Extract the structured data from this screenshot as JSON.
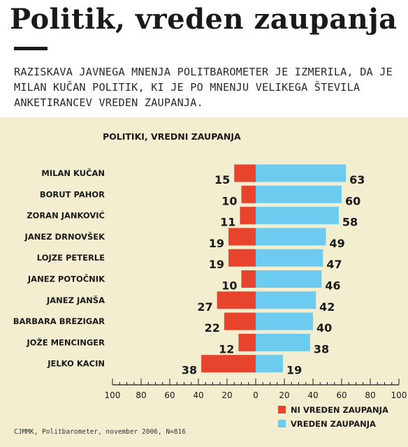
{
  "title": "Politik, vreden zaupanja",
  "intro": "RAZISKAVA JAVNEGA MNENJA POLITBAROMETER JE IZMERILA, DA JE MILAN KUČAN POLITIK, KI JE PO MNENJU VELIKEGA ŠTEVILA ANKETIRANCEV VREDEN ZAUPANJA.",
  "source": "CJMMK, Politbarometer, november 2006, N=816",
  "chart_data": {
    "type": "bar",
    "orientation": "horizontal-diverging",
    "title": "POLITIKI, VREDNI ZAUPANJA",
    "categories": [
      "MILAN KUČAN",
      "BORUT PAHOR",
      "ZORAN JANKOVIĆ",
      "JANEZ DRNOVŠEK",
      "LOJZE PETERLE",
      "JANEZ POTOČNIK",
      "JANEZ JANŠA",
      "BARBARA BREZIGAR",
      "JOŽE MENCINGER",
      "JELKO KACIN"
    ],
    "series": [
      {
        "name": "NI VREDEN ZAUPANJA",
        "color": "#e8432d",
        "direction": "left",
        "values": [
          15,
          10,
          11,
          19,
          19,
          10,
          27,
          22,
          12,
          38
        ]
      },
      {
        "name": "VREDEN ZAUPANJA",
        "color": "#6ccbef",
        "direction": "right",
        "values": [
          63,
          60,
          58,
          49,
          47,
          46,
          42,
          40,
          38,
          19
        ]
      }
    ],
    "xlim": [
      -100,
      100
    ],
    "tick_labels": [
      "100",
      "80",
      "60",
      "40",
      "20",
      "0",
      "20",
      "40",
      "60",
      "80",
      "100"
    ],
    "legend_position": "bottom-right",
    "grid": false
  }
}
